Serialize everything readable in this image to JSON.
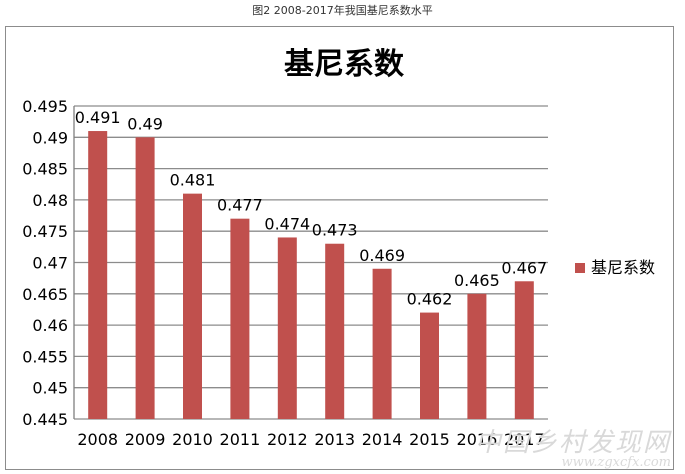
{
  "caption": "图2 2008-2017年我国基尼系数水平",
  "watermark": {
    "text": "中国乡村发现网",
    "url": "www.zgxcfx.com"
  },
  "colors": {
    "bar": "#C0504D",
    "grid": "#8c8c8c",
    "axis": "#7f7f7f",
    "text": "#000000"
  },
  "chart_data": {
    "type": "bar",
    "title": "基尼系数",
    "xlabel": "",
    "ylabel": "",
    "ylim": [
      0.445,
      0.495
    ],
    "y_ticks": [
      "0.495",
      "0.49",
      "0.485",
      "0.48",
      "0.475",
      "0.47",
      "0.465",
      "0.46",
      "0.455",
      "0.45",
      "0.445"
    ],
    "categories": [
      "2008",
      "2009",
      "2010",
      "2011",
      "2012",
      "2013",
      "2014",
      "2015",
      "2016",
      "2017"
    ],
    "series": [
      {
        "name": "基尼系数",
        "values": [
          0.491,
          0.49,
          0.481,
          0.477,
          0.474,
          0.473,
          0.469,
          0.462,
          0.465,
          0.467
        ]
      }
    ],
    "data_labels": [
      "0.491",
      "0.49",
      "0.481",
      "0.477",
      "0.474",
      "0.473",
      "0.469",
      "0.462",
      "0.465",
      "0.467"
    ],
    "grid": true,
    "legend_position": "right"
  }
}
